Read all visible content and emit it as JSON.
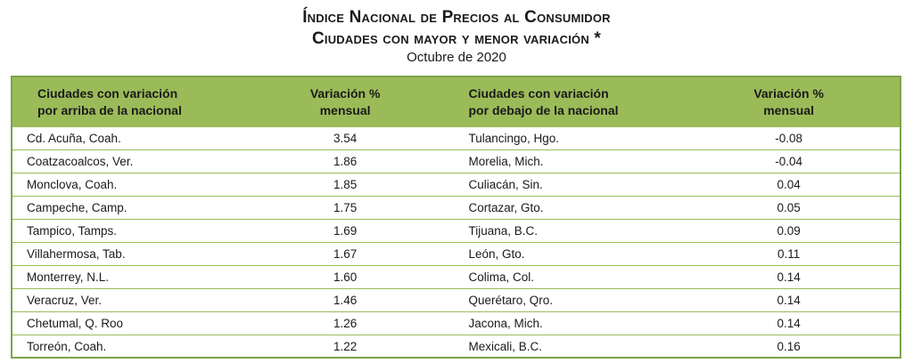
{
  "header": {
    "title_line1": "Índice Nacional de Precios al Consumidor",
    "title_line2": "Ciudades con mayor y menor variación *",
    "subtitle": "Octubre de 2020"
  },
  "table": {
    "columns": [
      "Ciudades con variación\npor arriba de la nacional",
      "Variación %\nmensual",
      "Ciudades con variación\npor debajo de la nacional",
      "Variación %\nmensual"
    ],
    "rows": [
      {
        "city_up": "Cd. Acuña, Coah.",
        "var_up": "3.54",
        "city_down": "Tulancingo, Hgo.",
        "var_down": "-0.08"
      },
      {
        "city_up": "Coatzacoalcos, Ver.",
        "var_up": "1.86",
        "city_down": "Morelia, Mich.",
        "var_down": "-0.04"
      },
      {
        "city_up": "Monclova, Coah.",
        "var_up": "1.85",
        "city_down": "Culiacán, Sin.",
        "var_down": "0.04"
      },
      {
        "city_up": "Campeche, Camp.",
        "var_up": "1.75",
        "city_down": "Cortazar, Gto.",
        "var_down": "0.05"
      },
      {
        "city_up": "Tampico, Tamps.",
        "var_up": "1.69",
        "city_down": "Tijuana, B.C.",
        "var_down": "0.09"
      },
      {
        "city_up": "Villahermosa, Tab.",
        "var_up": "1.67",
        "city_down": "León, Gto.",
        "var_down": "0.11"
      },
      {
        "city_up": "Monterrey, N.L.",
        "var_up": "1.60",
        "city_down": "Colima, Col.",
        "var_down": "0.14"
      },
      {
        "city_up": "Veracruz, Ver.",
        "var_up": "1.46",
        "city_down": "Querétaro, Qro.",
        "var_down": "0.14"
      },
      {
        "city_up": "Chetumal, Q. Roo",
        "var_up": "1.26",
        "city_down": "Jacona, Mich.",
        "var_down": "0.14"
      },
      {
        "city_up": "Torreón, Coah.",
        "var_up": "1.22",
        "city_down": "Mexicali, B.C.",
        "var_down": "0.16"
      }
    ]
  },
  "colors": {
    "header_fill": "#9bbb59",
    "border": "#7aa34a"
  }
}
